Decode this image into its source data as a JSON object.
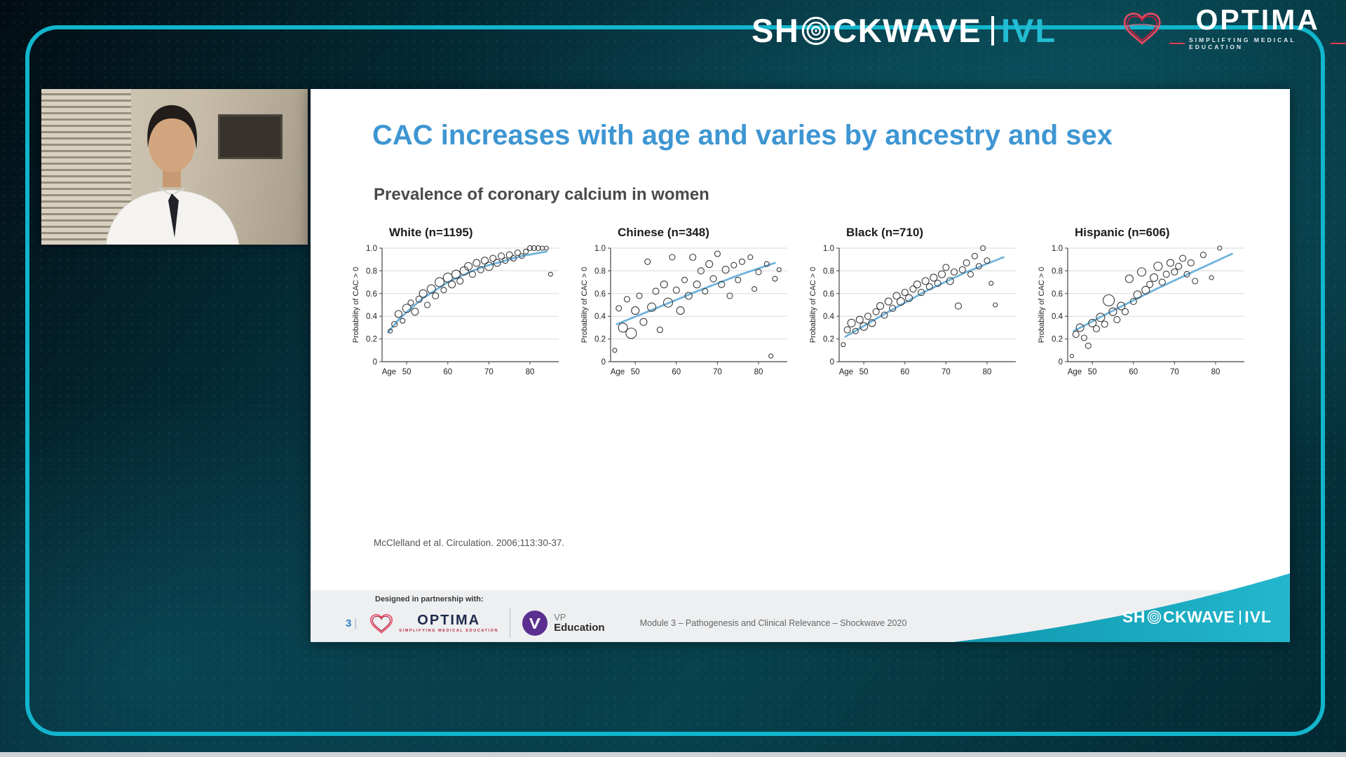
{
  "colors": {
    "accent": "#12b5cb",
    "slide_title_blue": "#3e96d2",
    "trend": "#6fb3dc",
    "swoosh_teal": "#17a9c0",
    "optima_red": "#e23b52",
    "vp_purple": "#5b2f90"
  },
  "header": {
    "shockwave": {
      "pre": "SH",
      "post": "CKWAVE",
      "product": "IVL"
    },
    "optima": {
      "name": "OPTIMA",
      "tagline": "SIMPLIFYING MEDICAL EDUCATION"
    }
  },
  "slide": {
    "title": "CAC increases with age and varies by ancestry and sex",
    "subtitle": "Prevalence of coronary calcium in women",
    "citation": "McClelland et al. Circulation. 2006;113:30-37.",
    "footer": {
      "partnership": "Designed in partnership with:",
      "page": "3",
      "page_divider": "|",
      "optima_name": "OPTIMA",
      "optima_tagline": "SIMPLIFYING MEDICAL EDUCATION",
      "vp_top": "VP",
      "vp_bottom": "Education",
      "module": "Module 3 – Pathogenesis and Clinical Relevance – Shockwave 2020",
      "shockwave": {
        "pre": "SH",
        "post": "CKWAVE",
        "product": "IVL"
      }
    }
  },
  "chart_data": [
    {
      "type": "scatter",
      "title": "White (n=1195)",
      "n": 1195,
      "xlabel": "Age",
      "ylabel": "Probability of CAC > 0",
      "xlim": [
        44,
        87
      ],
      "ylim": [
        0,
        1.0
      ],
      "xticks": [
        50,
        60,
        70,
        80
      ],
      "yticks": [
        {
          "v": 0,
          "l": "0"
        },
        {
          "v": 0.2,
          "l": "0.2"
        },
        {
          "v": 0.4,
          "l": "0.4"
        },
        {
          "v": 0.6,
          "l": "0.6"
        },
        {
          "v": 0.8,
          "l": "0.8"
        },
        {
          "v": 1.0,
          "l": "1.0"
        }
      ],
      "trend": [
        [
          45.5,
          0.26
        ],
        [
          48,
          0.37
        ],
        [
          51,
          0.47
        ],
        [
          54,
          0.56
        ],
        [
          57,
          0.63
        ],
        [
          60,
          0.7
        ],
        [
          63,
          0.75
        ],
        [
          66,
          0.8
        ],
        [
          69,
          0.84
        ],
        [
          72,
          0.87
        ],
        [
          75,
          0.9
        ],
        [
          78,
          0.93
        ],
        [
          81,
          0.95
        ],
        [
          84,
          0.97
        ]
      ],
      "points": [
        [
          46,
          0.27,
          3
        ],
        [
          47,
          0.33,
          4
        ],
        [
          48,
          0.42,
          5
        ],
        [
          49,
          0.36,
          3.5
        ],
        [
          50,
          0.47,
          6
        ],
        [
          51,
          0.52,
          4
        ],
        [
          52,
          0.44,
          5
        ],
        [
          53,
          0.55,
          4.5
        ],
        [
          54,
          0.6,
          5.5
        ],
        [
          55,
          0.5,
          4
        ],
        [
          56,
          0.64,
          6
        ],
        [
          57,
          0.58,
          4.5
        ],
        [
          58,
          0.7,
          6.5
        ],
        [
          59,
          0.63,
          4
        ],
        [
          60,
          0.74,
          6.5
        ],
        [
          61,
          0.68,
          5
        ],
        [
          62,
          0.77,
          6
        ],
        [
          63,
          0.71,
          4.5
        ],
        [
          64,
          0.8,
          6
        ],
        [
          65,
          0.84,
          5.5
        ],
        [
          66,
          0.77,
          4.5
        ],
        [
          67,
          0.87,
          5
        ],
        [
          68,
          0.81,
          4.5
        ],
        [
          69,
          0.89,
          5
        ],
        [
          70,
          0.84,
          6
        ],
        [
          71,
          0.91,
          4.5
        ],
        [
          72,
          0.87,
          5
        ],
        [
          73,
          0.93,
          4.5
        ],
        [
          74,
          0.89,
          4
        ],
        [
          75,
          0.94,
          4.5
        ],
        [
          76,
          0.91,
          4
        ],
        [
          77,
          0.96,
          4
        ],
        [
          78,
          0.93,
          3.5
        ],
        [
          79,
          0.97,
          3.5
        ],
        [
          80,
          1.0,
          3.5
        ],
        [
          81,
          1.0,
          3.5
        ],
        [
          82,
          1.0,
          3.5
        ],
        [
          83,
          1.0,
          3
        ],
        [
          84,
          1.0,
          3
        ],
        [
          85,
          0.77,
          3
        ]
      ]
    },
    {
      "type": "scatter",
      "title": "Chinese (n=348)",
      "n": 348,
      "xlabel": "Age",
      "ylabel": "Probability of CAC > 0",
      "xlim": [
        44,
        87
      ],
      "ylim": [
        0,
        1.0
      ],
      "xticks": [
        50,
        60,
        70,
        80
      ],
      "yticks": [
        {
          "v": 0,
          "l": "0"
        },
        {
          "v": 0.2,
          "l": "0.2"
        },
        {
          "v": 0.4,
          "l": "0.4"
        },
        {
          "v": 0.6,
          "l": "0.6"
        },
        {
          "v": 0.8,
          "l": "0.8"
        },
        {
          "v": 1.0,
          "l": "1.0"
        }
      ],
      "trend": [
        [
          45.5,
          0.33
        ],
        [
          55,
          0.47
        ],
        [
          65,
          0.62
        ],
        [
          75,
          0.76
        ],
        [
          84,
          0.87
        ]
      ],
      "points": [
        [
          45,
          0.1,
          3
        ],
        [
          46,
          0.47,
          4
        ],
        [
          47,
          0.3,
          6.5
        ],
        [
          48,
          0.55,
          4
        ],
        [
          49,
          0.25,
          7.5
        ],
        [
          50,
          0.45,
          5.5
        ],
        [
          51,
          0.58,
          4
        ],
        [
          52,
          0.35,
          5
        ],
        [
          53,
          0.88,
          4
        ],
        [
          54,
          0.48,
          6
        ],
        [
          55,
          0.62,
          4.5
        ],
        [
          56,
          0.28,
          4
        ],
        [
          57,
          0.68,
          5
        ],
        [
          58,
          0.52,
          6.5
        ],
        [
          59,
          0.92,
          4
        ],
        [
          60,
          0.63,
          4.5
        ],
        [
          61,
          0.45,
          5.5
        ],
        [
          62,
          0.72,
          4
        ],
        [
          63,
          0.58,
          5
        ],
        [
          64,
          0.92,
          4.5
        ],
        [
          65,
          0.68,
          5
        ],
        [
          66,
          0.8,
          4.5
        ],
        [
          67,
          0.62,
          4
        ],
        [
          68,
          0.86,
          5
        ],
        [
          69,
          0.73,
          4.5
        ],
        [
          70,
          0.95,
          4
        ],
        [
          71,
          0.68,
          4.5
        ],
        [
          72,
          0.81,
          5
        ],
        [
          73,
          0.58,
          4
        ],
        [
          74,
          0.85,
          4
        ],
        [
          75,
          0.72,
          4
        ],
        [
          76,
          0.88,
          4
        ],
        [
          78,
          0.92,
          3.5
        ],
        [
          79,
          0.64,
          3.5
        ],
        [
          80,
          0.79,
          4
        ],
        [
          82,
          0.86,
          3.5
        ],
        [
          83,
          0.05,
          3
        ],
        [
          84,
          0.73,
          3.5
        ],
        [
          85,
          0.81,
          3
        ]
      ]
    },
    {
      "type": "scatter",
      "title": "Black (n=710)",
      "n": 710,
      "xlabel": "Age",
      "ylabel": "Probability of CAC > 0",
      "xlim": [
        44,
        87
      ],
      "ylim": [
        0,
        1.0
      ],
      "xticks": [
        50,
        60,
        70,
        80
      ],
      "yticks": [
        {
          "v": 0,
          "l": "0"
        },
        {
          "v": 0.2,
          "l": "0.2"
        },
        {
          "v": 0.4,
          "l": "0.4"
        },
        {
          "v": 0.6,
          "l": "0.6"
        },
        {
          "v": 0.8,
          "l": "0.8"
        },
        {
          "v": 1.0,
          "l": "1.0"
        }
      ],
      "trend": [
        [
          45.5,
          0.22
        ],
        [
          55,
          0.42
        ],
        [
          65,
          0.62
        ],
        [
          75,
          0.79
        ],
        [
          84,
          0.92
        ]
      ],
      "points": [
        [
          45,
          0.15,
          3
        ],
        [
          46,
          0.28,
          4.5
        ],
        [
          47,
          0.34,
          5.5
        ],
        [
          48,
          0.27,
          4
        ],
        [
          49,
          0.37,
          5
        ],
        [
          50,
          0.31,
          5.5
        ],
        [
          51,
          0.4,
          4.5
        ],
        [
          52,
          0.34,
          5
        ],
        [
          53,
          0.44,
          4.5
        ],
        [
          54,
          0.49,
          5
        ],
        [
          55,
          0.41,
          4.5
        ],
        [
          56,
          0.53,
          5
        ],
        [
          57,
          0.47,
          4.5
        ],
        [
          58,
          0.58,
          5
        ],
        [
          59,
          0.53,
          5.5
        ],
        [
          60,
          0.61,
          4.5
        ],
        [
          61,
          0.56,
          5
        ],
        [
          62,
          0.64,
          4.5
        ],
        [
          63,
          0.68,
          5
        ],
        [
          64,
          0.61,
          4.5
        ],
        [
          65,
          0.71,
          5
        ],
        [
          66,
          0.66,
          4.5
        ],
        [
          67,
          0.74,
          5
        ],
        [
          68,
          0.69,
          4.5
        ],
        [
          69,
          0.77,
          5
        ],
        [
          70,
          0.83,
          4.5
        ],
        [
          71,
          0.71,
          5
        ],
        [
          72,
          0.79,
          4.5
        ],
        [
          73,
          0.49,
          4.5
        ],
        [
          74,
          0.81,
          4.5
        ],
        [
          75,
          0.87,
          4.5
        ],
        [
          76,
          0.77,
          4
        ],
        [
          77,
          0.93,
          4
        ],
        [
          78,
          0.84,
          4
        ],
        [
          79,
          1.0,
          3.5
        ],
        [
          80,
          0.89,
          4
        ],
        [
          81,
          0.69,
          3
        ],
        [
          82,
          0.5,
          3
        ]
      ]
    },
    {
      "type": "scatter",
      "title": "Hispanic (n=606)",
      "n": 606,
      "xlabel": "Age",
      "ylabel": "Probability of CAC > 0",
      "xlim": [
        44,
        87
      ],
      "ylim": [
        0,
        1.0
      ],
      "xticks": [
        50,
        60,
        70,
        80
      ],
      "yticks": [
        {
          "v": 0,
          "l": "0"
        },
        {
          "v": 0.2,
          "l": "0.2"
        },
        {
          "v": 0.4,
          "l": "0.4"
        },
        {
          "v": 0.6,
          "l": "0.6"
        },
        {
          "v": 0.8,
          "l": "0.8"
        },
        {
          "v": 1.0,
          "l": "1.0"
        }
      ],
      "trend": [
        [
          45.5,
          0.27
        ],
        [
          55,
          0.45
        ],
        [
          65,
          0.63
        ],
        [
          75,
          0.8
        ],
        [
          84,
          0.95
        ]
      ],
      "points": [
        [
          45,
          0.05,
          2.5
        ],
        [
          46,
          0.24,
          4.5
        ],
        [
          47,
          0.3,
          5.5
        ],
        [
          48,
          0.21,
          4
        ],
        [
          49,
          0.14,
          4
        ],
        [
          50,
          0.34,
          5.5
        ],
        [
          51,
          0.29,
          4.5
        ],
        [
          52,
          0.39,
          6
        ],
        [
          53,
          0.33,
          4.5
        ],
        [
          54,
          0.54,
          8
        ],
        [
          55,
          0.44,
          5.5
        ],
        [
          56,
          0.37,
          4.5
        ],
        [
          57,
          0.49,
          5.5
        ],
        [
          58,
          0.44,
          4.5
        ],
        [
          59,
          0.73,
          5.5
        ],
        [
          60,
          0.53,
          4.5
        ],
        [
          61,
          0.59,
          5.5
        ],
        [
          62,
          0.79,
          6
        ],
        [
          63,
          0.63,
          5.5
        ],
        [
          64,
          0.68,
          4.5
        ],
        [
          65,
          0.74,
          5.5
        ],
        [
          66,
          0.84,
          6
        ],
        [
          67,
          0.7,
          4.5
        ],
        [
          68,
          0.77,
          4.5
        ],
        [
          69,
          0.87,
          5
        ],
        [
          70,
          0.79,
          4.5
        ],
        [
          71,
          0.84,
          4.5
        ],
        [
          72,
          0.91,
          4.5
        ],
        [
          73,
          0.77,
          4
        ],
        [
          74,
          0.87,
          4.5
        ],
        [
          75,
          0.71,
          4
        ],
        [
          77,
          0.94,
          4
        ],
        [
          79,
          0.74,
          3
        ],
        [
          81,
          1.0,
          3
        ]
      ]
    }
  ]
}
